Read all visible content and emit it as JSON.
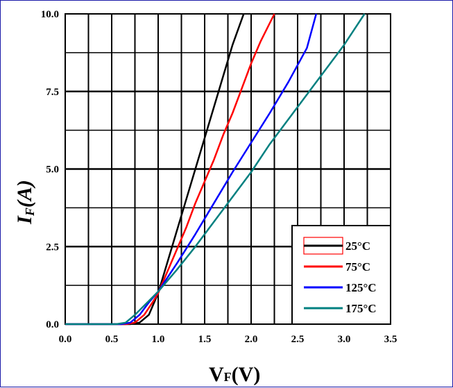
{
  "chart_data": {
    "type": "line",
    "xlabel": {
      "main": "V",
      "sub": "F",
      "tail": "(V)"
    },
    "ylabel": {
      "main": "I",
      "sub": "F",
      "tail": "(A)"
    },
    "xlim": [
      0.0,
      3.5
    ],
    "ylim": [
      0.0,
      10.0
    ],
    "x_ticks": [
      "0.0",
      "0.5",
      "1.0",
      "1.5",
      "2.0",
      "2.5",
      "3.0",
      "3.5"
    ],
    "y_ticks": [
      "0.0",
      "2.5",
      "5.0",
      "7.5",
      "10.0"
    ],
    "grid": true,
    "legend_position": "bottom-right",
    "series": [
      {
        "name": "25°C",
        "color": "#000000",
        "points": [
          [
            0.0,
            0.0
          ],
          [
            0.7,
            0.0
          ],
          [
            0.8,
            0.05
          ],
          [
            0.9,
            0.3
          ],
          [
            1.0,
            1.0
          ],
          [
            1.1,
            2.0
          ],
          [
            1.2,
            3.0
          ],
          [
            1.3,
            4.0
          ],
          [
            1.4,
            5.0
          ],
          [
            1.5,
            6.0
          ],
          [
            1.6,
            7.0
          ],
          [
            1.7,
            8.0
          ],
          [
            1.8,
            9.0
          ],
          [
            1.92,
            10.0
          ]
        ]
      },
      {
        "name": "75°C",
        "color": "#ff0000",
        "points": [
          [
            0.0,
            0.0
          ],
          [
            0.65,
            0.0
          ],
          [
            0.75,
            0.05
          ],
          [
            0.85,
            0.3
          ],
          [
            0.95,
            0.75
          ],
          [
            1.0,
            1.0
          ],
          [
            1.1,
            1.7
          ],
          [
            1.2,
            2.4
          ],
          [
            1.3,
            3.1
          ],
          [
            1.4,
            3.9
          ],
          [
            1.5,
            4.6
          ],
          [
            1.6,
            5.3
          ],
          [
            1.7,
            6.1
          ],
          [
            1.8,
            6.8
          ],
          [
            1.9,
            7.6
          ],
          [
            2.0,
            8.4
          ],
          [
            2.1,
            9.1
          ],
          [
            2.25,
            10.0
          ]
        ]
      },
      {
        "name": "125°C",
        "color": "#0000ff",
        "points": [
          [
            0.0,
            0.0
          ],
          [
            0.6,
            0.0
          ],
          [
            0.7,
            0.05
          ],
          [
            0.8,
            0.3
          ],
          [
            0.9,
            0.7
          ],
          [
            1.0,
            1.05
          ],
          [
            1.2,
            1.95
          ],
          [
            1.4,
            2.9
          ],
          [
            1.6,
            3.9
          ],
          [
            1.8,
            4.9
          ],
          [
            2.0,
            5.85
          ],
          [
            2.2,
            6.8
          ],
          [
            2.4,
            7.8
          ],
          [
            2.6,
            8.9
          ],
          [
            2.7,
            10.0
          ]
        ]
      },
      {
        "name": "175°C",
        "color": "#008080",
        "points": [
          [
            0.0,
            0.0
          ],
          [
            0.55,
            0.0
          ],
          [
            0.65,
            0.05
          ],
          [
            0.75,
            0.3
          ],
          [
            0.85,
            0.6
          ],
          [
            1.0,
            1.05
          ],
          [
            1.2,
            1.75
          ],
          [
            1.4,
            2.5
          ],
          [
            1.6,
            3.3
          ],
          [
            1.8,
            4.1
          ],
          [
            2.0,
            4.9
          ],
          [
            2.2,
            5.8
          ],
          [
            2.4,
            6.6
          ],
          [
            2.6,
            7.4
          ],
          [
            2.8,
            8.2
          ],
          [
            3.0,
            9.0
          ],
          [
            3.22,
            10.0
          ]
        ]
      }
    ]
  }
}
